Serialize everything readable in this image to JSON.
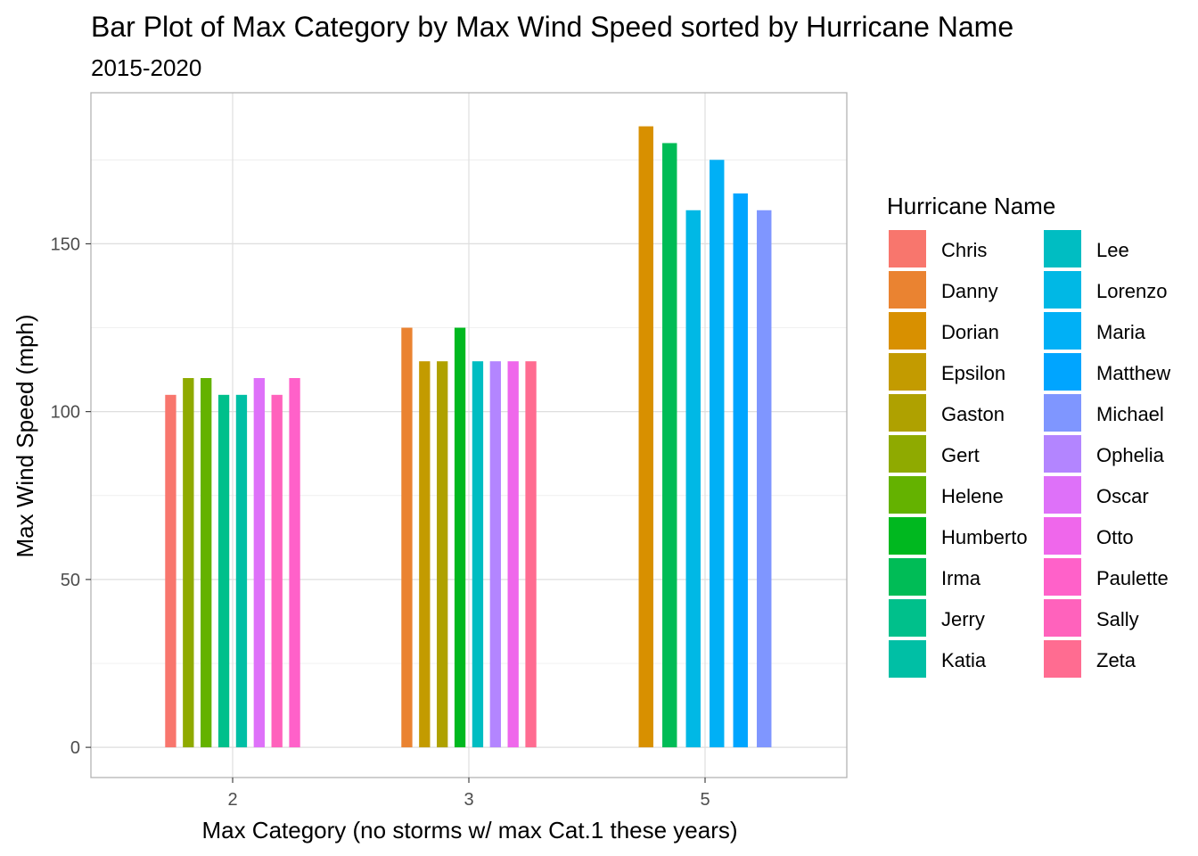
{
  "chart_data": {
    "type": "bar",
    "title": "Bar Plot of Max Category by Max Wind Speed sorted by Hurricane Name",
    "subtitle": "2015-2020",
    "xlabel": "Max Category (no storms w/ max Cat.1 these years)",
    "ylabel": "Max Wind Speed (mph)",
    "ylim": [
      -9,
      195
    ],
    "yticks": [
      0,
      50,
      100,
      150
    ],
    "grid": true,
    "legend_title": "Hurricane Name",
    "legend_position": "right",
    "categories": [
      "2",
      "3",
      "5"
    ],
    "series": [
      {
        "name": "Chris",
        "color": "#F8766D"
      },
      {
        "name": "Danny",
        "color": "#EA8331"
      },
      {
        "name": "Dorian",
        "color": "#D89000"
      },
      {
        "name": "Epsilon",
        "color": "#C09B00"
      },
      {
        "name": "Gaston",
        "color": "#A3A500"
      },
      {
        "name": "Gert",
        "color": "#7CAE00"
      },
      {
        "name": "Helene",
        "color": "#39B600"
      },
      {
        "name": "Humberto",
        "color": "#00BB4E"
      },
      {
        "name": "Irma",
        "color": "#00BF7D"
      },
      {
        "name": "Jerry",
        "color": "#00C1A3"
      },
      {
        "name": "Katia",
        "color": "#00BFC4"
      },
      {
        "name": "Lee",
        "color": "#00BAE0"
      },
      {
        "name": "Lorenzo",
        "color": "#00B0F6"
      },
      {
        "name": "Maria",
        "color": "#35A2FF"
      },
      {
        "name": "Matthew",
        "color": "#9590FF"
      },
      {
        "name": "Michael",
        "color": "#C77CFF"
      },
      {
        "name": "Ophelia",
        "color": "#E76BF3"
      },
      {
        "name": "Oscar",
        "color": "#FA62DB"
      },
      {
        "name": "Otto",
        "color": "#FF62BC"
      },
      {
        "name": "Paulette",
        "color": "#FF6A98"
      },
      {
        "name": "Sally",
        "color": "#F8766D"
      },
      {
        "name": "Zeta",
        "color": "#EA8331"
      }
    ],
    "bars": [
      {
        "category": "2",
        "hurricane": "Chris",
        "value": 105,
        "color": "#F8766D"
      },
      {
        "category": "2",
        "hurricane": "Gert",
        "value": 110,
        "color": "#8FAA00"
      },
      {
        "category": "2",
        "hurricane": "Helene",
        "value": 110,
        "color": "#64B200"
      },
      {
        "category": "2",
        "hurricane": "Jerry",
        "value": 105,
        "color": "#00C08B"
      },
      {
        "category": "2",
        "hurricane": "Katia",
        "value": 105,
        "color": "#00BFA5"
      },
      {
        "category": "2",
        "hurricane": "Oscar",
        "value": 110,
        "color": "#DE71F9"
      },
      {
        "category": "2",
        "hurricane": "Paulette",
        "value": 105,
        "color": "#FF62BC"
      },
      {
        "category": "2",
        "hurricane": "Sally",
        "value": 110,
        "color": "#FF61C9"
      },
      {
        "category": "3",
        "hurricane": "Danny",
        "value": 125,
        "color": "#EA8331"
      },
      {
        "category": "3",
        "hurricane": "Epsilon",
        "value": 115,
        "color": "#C39B00"
      },
      {
        "category": "3",
        "hurricane": "Gaston",
        "value": 115,
        "color": "#AFA100"
      },
      {
        "category": "3",
        "hurricane": "Humberto",
        "value": 125,
        "color": "#00B81F"
      },
      {
        "category": "3",
        "hurricane": "Lee",
        "value": 115,
        "color": "#00BDC2"
      },
      {
        "category": "3",
        "hurricane": "Ophelia",
        "value": 115,
        "color": "#B385FF"
      },
      {
        "category": "3",
        "hurricane": "Otto",
        "value": 115,
        "color": "#EF67EB"
      },
      {
        "category": "3",
        "hurricane": "Zeta",
        "value": 115,
        "color": "#FF6C91"
      },
      {
        "category": "5",
        "hurricane": "Dorian",
        "value": 185,
        "color": "#D89000"
      },
      {
        "category": "5",
        "hurricane": "Irma",
        "value": 180,
        "color": "#00BC56"
      },
      {
        "category": "5",
        "hurricane": "Lorenzo",
        "value": 160,
        "color": "#00B8E5"
      },
      {
        "category": "5",
        "hurricane": "Maria",
        "value": 175,
        "color": "#00B0F6"
      },
      {
        "category": "5",
        "hurricane": "Matthew",
        "value": 165,
        "color": "#00A5FF"
      },
      {
        "category": "5",
        "hurricane": "Michael",
        "value": 160,
        "color": "#7F96FF"
      }
    ],
    "legend": [
      {
        "name": "Chris",
        "color": "#F8766D"
      },
      {
        "name": "Danny",
        "color": "#EA8331"
      },
      {
        "name": "Dorian",
        "color": "#D89000"
      },
      {
        "name": "Epsilon",
        "color": "#C39B00"
      },
      {
        "name": "Gaston",
        "color": "#AFA100"
      },
      {
        "name": "Gert",
        "color": "#8FAA00"
      },
      {
        "name": "Helene",
        "color": "#64B200"
      },
      {
        "name": "Humberto",
        "color": "#00B81F"
      },
      {
        "name": "Irma",
        "color": "#00BC56"
      },
      {
        "name": "Jerry",
        "color": "#00C08B"
      },
      {
        "name": "Katia",
        "color": "#00BFA5"
      },
      {
        "name": "Lee",
        "color": "#00BDC2"
      },
      {
        "name": "Lorenzo",
        "color": "#00B8E5"
      },
      {
        "name": "Maria",
        "color": "#00B0F6"
      },
      {
        "name": "Matthew",
        "color": "#00A5FF"
      },
      {
        "name": "Michael",
        "color": "#7F96FF"
      },
      {
        "name": "Ophelia",
        "color": "#B385FF"
      },
      {
        "name": "Oscar",
        "color": "#DE71F9"
      },
      {
        "name": "Otto",
        "color": "#EF67EB"
      },
      {
        "name": "Paulette",
        "color": "#FF61C9"
      },
      {
        "name": "Sally",
        "color": "#FF62BC"
      },
      {
        "name": "Zeta",
        "color": "#FF6C91"
      }
    ]
  }
}
